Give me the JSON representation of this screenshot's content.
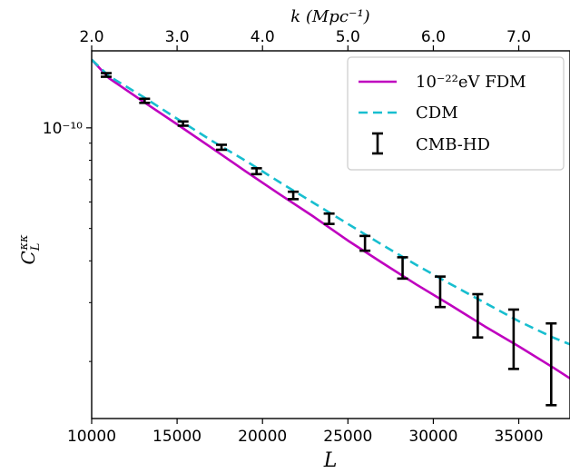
{
  "chart_data": {
    "type": "line",
    "xlabel": "L",
    "ylabel": "C_L^{κκ}",
    "top_axis_label": "k (Mpc⁻¹)",
    "xlim": [
      10000,
      38000
    ],
    "ylim": [
      1.35e-11,
      1.7e-10
    ],
    "y_scale": "log",
    "grid": false,
    "x_ticks": [
      10000,
      15000,
      20000,
      25000,
      30000,
      35000
    ],
    "x_tick_labels": [
      "10000",
      "15000",
      "20000",
      "25000",
      "30000",
      "35000"
    ],
    "top_ticks": [
      2.0,
      3.0,
      4.0,
      5.0,
      6.0,
      7.0
    ],
    "top_tick_labels": [
      "2.0",
      "3.0",
      "4.0",
      "5.0",
      "6.0",
      "7.0"
    ],
    "y_ticks": [
      1e-10
    ],
    "y_tick_labels": [
      "10⁻¹⁰"
    ],
    "legend_position": "top-right",
    "series": [
      {
        "name": "10⁻²²eV FDM",
        "style": "solid",
        "color": "#bf00bf",
        "x": [
          10000,
          11000,
          13000,
          15000,
          17000,
          19000,
          21000,
          23000,
          25000,
          27000,
          29000,
          31000,
          33000,
          35000,
          37000,
          38000
        ],
        "y": [
          1.6e-10,
          1.41e-10,
          1.2e-10,
          1.025e-10,
          8.73e-11,
          7.42e-11,
          6.33e-11,
          5.42e-11,
          4.6e-11,
          3.95e-11,
          3.4e-11,
          2.95e-11,
          2.55e-11,
          2.22e-11,
          1.92e-11,
          1.78e-11
        ]
      },
      {
        "name": "CDM",
        "style": "dashed",
        "color": "#17becf",
        "x": [
          10000,
          11000,
          13000,
          15000,
          17000,
          19000,
          21000,
          23000,
          25000,
          27000,
          29000,
          31000,
          33000,
          35000,
          37000,
          38000
        ],
        "y": [
          1.6e-10,
          1.43e-10,
          1.24e-10,
          1.065e-10,
          9.17e-11,
          7.98e-11,
          6.88e-11,
          5.96e-11,
          5.16e-11,
          4.47e-11,
          3.89e-11,
          3.41e-11,
          3e-11,
          2.64e-11,
          2.36e-11,
          2.25e-11
        ]
      },
      {
        "name": "CMB-HD",
        "style": "errorbar",
        "color": "#000000",
        "x": [
          10850,
          13100,
          15350,
          17600,
          19650,
          21800,
          23900,
          26000,
          28200,
          30400,
          32600,
          34700,
          36900
        ],
        "y": [
          1.44e-10,
          1.205e-10,
          1.03e-10,
          8.75e-11,
          7.42e-11,
          6.28e-11,
          5.35e-11,
          4.52e-11,
          3.82e-11,
          3.25e-11,
          2.77e-11,
          2.38e-11,
          2.04e-11
        ],
        "err": [
          1.8e-12,
          1.7e-12,
          1.5e-12,
          1.5e-12,
          1.5e-12,
          1.6e-12,
          1.9e-12,
          2.3e-12,
          2.8e-12,
          3.4e-12,
          4.1e-12,
          4.8e-12,
          5.6e-12
        ]
      }
    ]
  }
}
